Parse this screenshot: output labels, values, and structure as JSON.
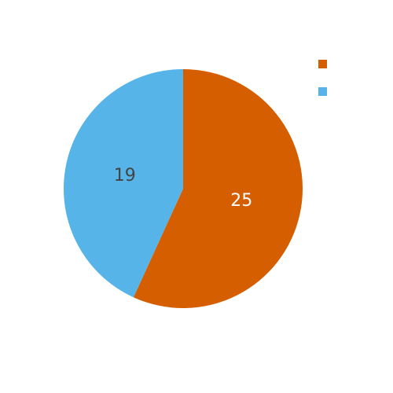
{
  "chart_data": {
    "type": "pie",
    "title": "",
    "slices": [
      {
        "name": "",
        "value": 25,
        "label": "25",
        "color": "#d55e00",
        "label_color": "#ffffff"
      },
      {
        "name": "",
        "value": 19,
        "label": "19",
        "color": "#56b4e9",
        "label_color": "#444444"
      }
    ],
    "legend_placement": "top-right",
    "start_angle_deg": 0,
    "direction": "clockwise"
  }
}
